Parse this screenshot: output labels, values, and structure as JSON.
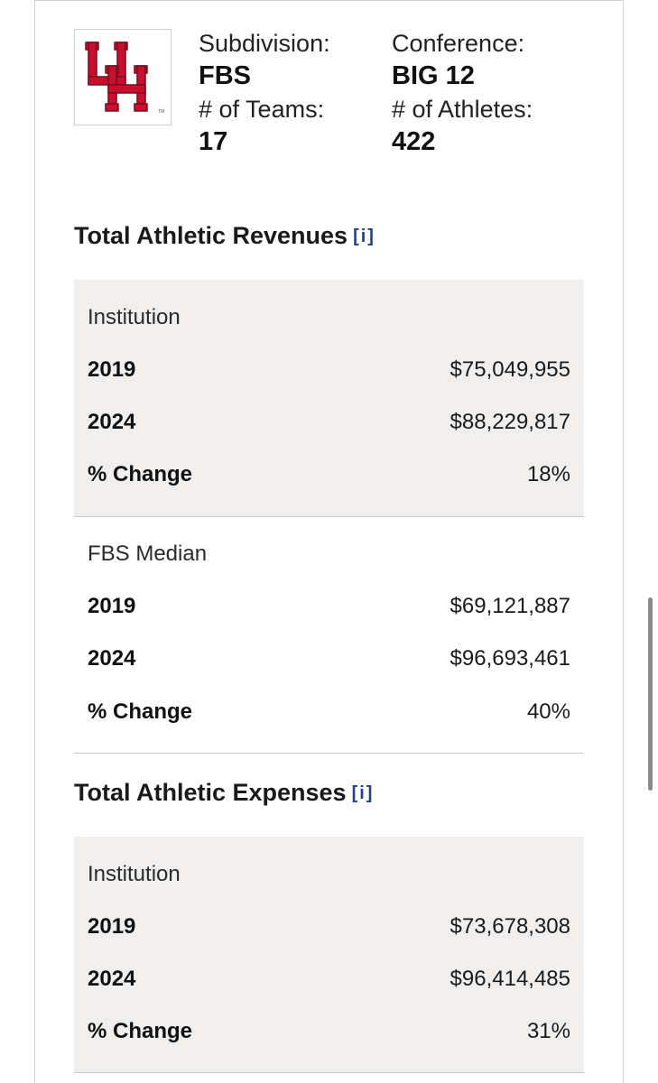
{
  "team": {
    "logo_text": "UH",
    "logo_color": "#c8102e",
    "subdivision_label": "Subdivision:",
    "subdivision_value": "FBS",
    "teams_label": "# of Teams:",
    "teams_value": "17",
    "conference_label": "Conference:",
    "conference_value": "BIG 12",
    "athletes_label": "# of Athletes:",
    "athletes_value": "422"
  },
  "revenues": {
    "title": "Total Athletic Revenues",
    "info_label": "[i]",
    "institution": {
      "header": "Institution",
      "rows": [
        {
          "label": "2019",
          "value": "$75,049,955"
        },
        {
          "label": "2024",
          "value": "$88,229,817"
        },
        {
          "label": "% Change",
          "value": "18%"
        }
      ]
    },
    "median": {
      "header": "FBS Median",
      "rows": [
        {
          "label": "2019",
          "value": "$69,121,887"
        },
        {
          "label": "2024",
          "value": "$96,693,461"
        },
        {
          "label": "% Change",
          "value": "40%"
        }
      ]
    }
  },
  "expenses": {
    "title": "Total Athletic Expenses",
    "info_label": "[i]",
    "institution": {
      "header": "Institution",
      "rows": [
        {
          "label": "2019",
          "value": "$73,678,308"
        },
        {
          "label": "2024",
          "value": "$96,414,485"
        },
        {
          "label": "% Change",
          "value": "31%"
        }
      ]
    }
  }
}
